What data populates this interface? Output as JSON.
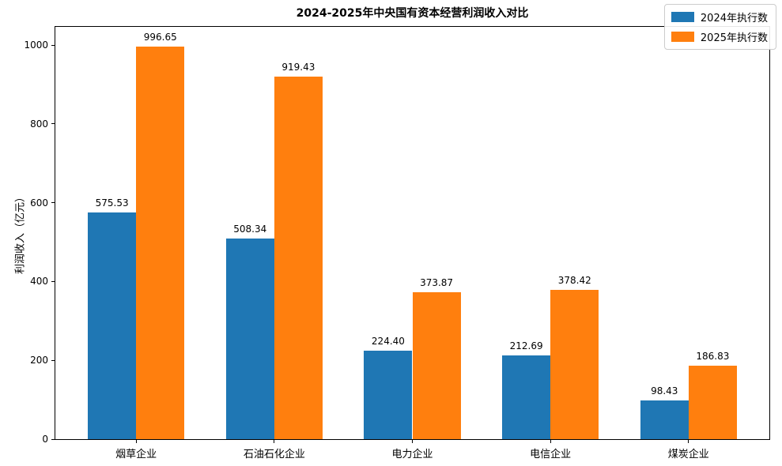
{
  "chart_data": {
    "type": "bar",
    "title": "2024-2025年中央国有资本经营利润收入对比",
    "xlabel": "",
    "ylabel": "利润收入（亿元）",
    "categories": [
      "烟草企业",
      "石油石化企业",
      "电力企业",
      "电信企业",
      "煤炭企业"
    ],
    "series": [
      {
        "name": "2024年执行数",
        "color": "#1f77b4",
        "values": [
          575.53,
          508.34,
          224.4,
          212.69,
          98.43
        ]
      },
      {
        "name": "2025年执行数",
        "color": "#ff7f0e",
        "values": [
          996.65,
          919.43,
          373.87,
          378.42,
          186.83
        ]
      }
    ],
    "ylim": [
      0,
      1046.5
    ],
    "yticks": [
      0,
      200,
      400,
      600,
      800,
      1000
    ],
    "bar_width_ratio": 0.35,
    "value_label_decimals": 2,
    "grid": false,
    "legend_position": "upper right",
    "frame_color": "#000000",
    "background_color": "#ffffff"
  }
}
